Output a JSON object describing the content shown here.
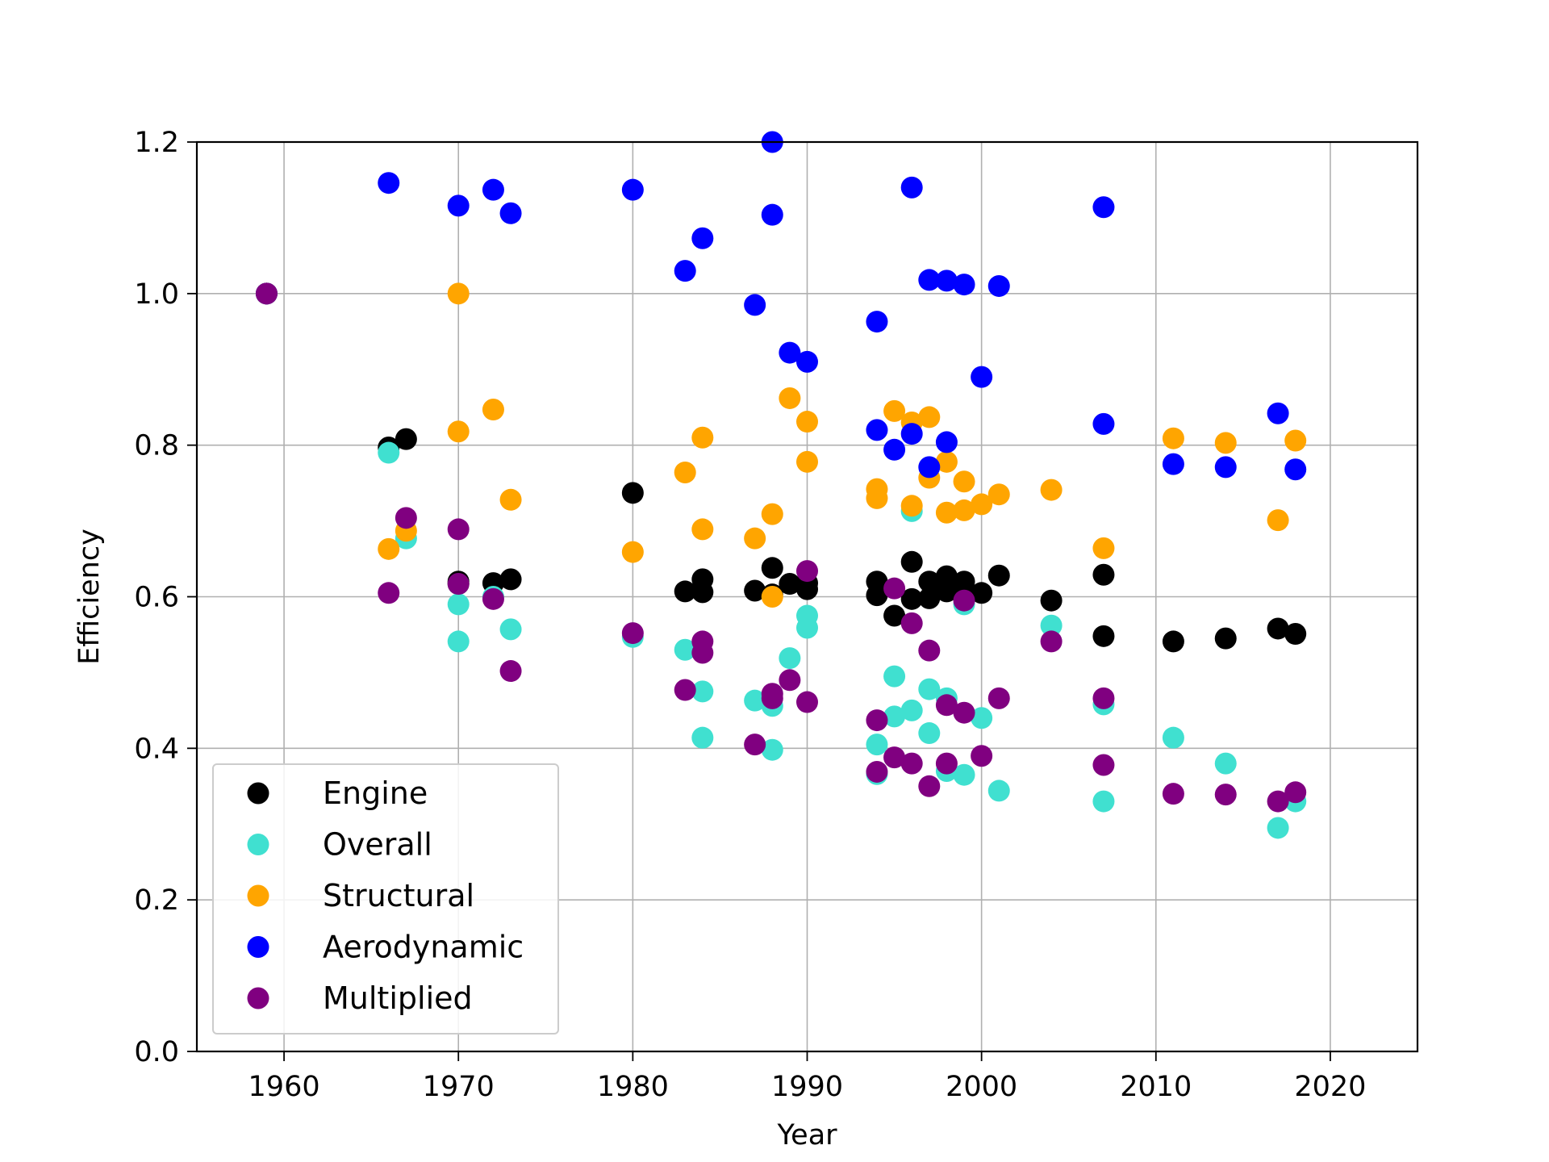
{
  "chart_data": {
    "type": "scatter",
    "title": "",
    "xlabel": "Year",
    "ylabel": "Efficiency",
    "xlim": [
      1955,
      2025
    ],
    "ylim": [
      0,
      1.2
    ],
    "xticks": [
      1960,
      1970,
      1980,
      1990,
      2000,
      2010,
      2020
    ],
    "xtick_labels": [
      "1960",
      "1970",
      "1980",
      "1990",
      "2000",
      "2010",
      "2020"
    ],
    "yticks": [
      0,
      0.2,
      0.4,
      0.6,
      0.8,
      1.0,
      1.2
    ],
    "ytick_labels": [
      "0.0",
      "0.2",
      "0.4",
      "0.6",
      "0.8",
      "1.0",
      "1.2"
    ],
    "grid": true,
    "legend_position": "lower-left",
    "series": [
      {
        "name": "Engine",
        "color": "#000000",
        "points": [
          [
            1959,
            1.0
          ],
          [
            1966,
            0.797
          ],
          [
            1967,
            0.808
          ],
          [
            1970,
            0.62
          ],
          [
            1970,
            0.617
          ],
          [
            1972,
            0.618
          ],
          [
            1973,
            0.623
          ],
          [
            1980,
            0.737
          ],
          [
            1983,
            0.607
          ],
          [
            1984,
            0.623
          ],
          [
            1984,
            0.606
          ],
          [
            1987,
            0.608
          ],
          [
            1988,
            0.638
          ],
          [
            1988,
            0.603
          ],
          [
            1989,
            0.617
          ],
          [
            1990,
            0.61
          ],
          [
            1990,
            0.618
          ],
          [
            1994,
            0.62
          ],
          [
            1994,
            0.602
          ],
          [
            1995,
            0.575
          ],
          [
            1996,
            0.646
          ],
          [
            1996,
            0.597
          ],
          [
            1997,
            0.62
          ],
          [
            1997,
            0.598
          ],
          [
            1998,
            0.627
          ],
          [
            1998,
            0.607
          ],
          [
            1999,
            0.62
          ],
          [
            1999,
            0.61
          ],
          [
            2000,
            0.605
          ],
          [
            2001,
            0.628
          ],
          [
            2004,
            0.595
          ],
          [
            2007,
            0.629
          ],
          [
            2007,
            0.548
          ],
          [
            2011,
            0.541
          ],
          [
            2014,
            0.545
          ],
          [
            2017,
            0.558
          ],
          [
            2018,
            0.551
          ]
        ]
      },
      {
        "name": "Overall",
        "color": "#40e0d0",
        "points": [
          [
            1959,
            1.0
          ],
          [
            1966,
            0.79
          ],
          [
            1967,
            0.677
          ],
          [
            1970,
            0.59
          ],
          [
            1970,
            0.541
          ],
          [
            1972,
            0.6
          ],
          [
            1973,
            0.557
          ],
          [
            1980,
            0.547
          ],
          [
            1983,
            0.53
          ],
          [
            1984,
            0.475
          ],
          [
            1984,
            0.414
          ],
          [
            1987,
            0.463
          ],
          [
            1988,
            0.456
          ],
          [
            1988,
            0.398
          ],
          [
            1989,
            0.519
          ],
          [
            1990,
            0.575
          ],
          [
            1990,
            0.559
          ],
          [
            1994,
            0.405
          ],
          [
            1994,
            0.366
          ],
          [
            1995,
            0.495
          ],
          [
            1995,
            0.442
          ],
          [
            1996,
            0.713
          ],
          [
            1996,
            0.45
          ],
          [
            1997,
            0.478
          ],
          [
            1997,
            0.42
          ],
          [
            1998,
            0.466
          ],
          [
            1998,
            0.37
          ],
          [
            1999,
            0.59
          ],
          [
            1999,
            0.365
          ],
          [
            2000,
            0.44
          ],
          [
            2001,
            0.344
          ],
          [
            2004,
            0.562
          ],
          [
            2007,
            0.458
          ],
          [
            2007,
            0.33
          ],
          [
            2011,
            0.414
          ],
          [
            2014,
            0.38
          ],
          [
            2017,
            0.295
          ],
          [
            2018,
            0.33
          ]
        ]
      },
      {
        "name": "Structural",
        "color": "#ffa500",
        "points": [
          [
            1959,
            1.0
          ],
          [
            1966,
            0.663
          ],
          [
            1967,
            0.687
          ],
          [
            1970,
            1.0
          ],
          [
            1970,
            0.818
          ],
          [
            1972,
            0.847
          ],
          [
            1973,
            0.728
          ],
          [
            1980,
            0.659
          ],
          [
            1983,
            0.764
          ],
          [
            1984,
            0.81
          ],
          [
            1984,
            0.689
          ],
          [
            1987,
            0.677
          ],
          [
            1988,
            0.709
          ],
          [
            1988,
            0.6
          ],
          [
            1989,
            0.862
          ],
          [
            1990,
            0.831
          ],
          [
            1990,
            0.778
          ],
          [
            1994,
            0.742
          ],
          [
            1994,
            0.73
          ],
          [
            1995,
            0.845
          ],
          [
            1996,
            0.83
          ],
          [
            1996,
            0.72
          ],
          [
            1997,
            0.837
          ],
          [
            1997,
            0.757
          ],
          [
            1998,
            0.778
          ],
          [
            1998,
            0.711
          ],
          [
            1999,
            0.752
          ],
          [
            1999,
            0.714
          ],
          [
            2000,
            0.722
          ],
          [
            2001,
            0.735
          ],
          [
            2004,
            0.741
          ],
          [
            2007,
            0.664
          ],
          [
            2011,
            0.809
          ],
          [
            2014,
            0.803
          ],
          [
            2017,
            0.701
          ],
          [
            2018,
            0.806
          ]
        ]
      },
      {
        "name": "Aerodynamic",
        "color": "#0000ff",
        "points": [
          [
            1959,
            1.0
          ],
          [
            1966,
            1.146
          ],
          [
            1970,
            1.116
          ],
          [
            1972,
            1.137
          ],
          [
            1973,
            1.106
          ],
          [
            1980,
            1.137
          ],
          [
            1983,
            1.03
          ],
          [
            1984,
            1.073
          ],
          [
            1987,
            0.985
          ],
          [
            1988,
            1.2
          ],
          [
            1988,
            1.104
          ],
          [
            1989,
            0.922
          ],
          [
            1990,
            0.91
          ],
          [
            1994,
            0.963
          ],
          [
            1994,
            0.82
          ],
          [
            1995,
            0.794
          ],
          [
            1996,
            1.14
          ],
          [
            1996,
            0.815
          ],
          [
            1997,
            1.018
          ],
          [
            1997,
            0.771
          ],
          [
            1998,
            1.017
          ],
          [
            1998,
            0.804
          ],
          [
            1999,
            1.012
          ],
          [
            2000,
            0.89
          ],
          [
            2001,
            1.01
          ],
          [
            2007,
            1.114
          ],
          [
            2007,
            0.828
          ],
          [
            2011,
            0.775
          ],
          [
            2014,
            0.771
          ],
          [
            2017,
            0.842
          ],
          [
            2018,
            0.768
          ]
        ]
      },
      {
        "name": "Multiplied",
        "color": "#800080",
        "points": [
          [
            1959,
            1.0
          ],
          [
            1966,
            0.605
          ],
          [
            1967,
            0.704
          ],
          [
            1970,
            0.689
          ],
          [
            1970,
            0.617
          ],
          [
            1972,
            0.597
          ],
          [
            1973,
            0.502
          ],
          [
            1980,
            0.552
          ],
          [
            1983,
            0.477
          ],
          [
            1984,
            0.541
          ],
          [
            1984,
            0.526
          ],
          [
            1987,
            0.405
          ],
          [
            1988,
            0.472
          ],
          [
            1988,
            0.466
          ],
          [
            1989,
            0.49
          ],
          [
            1990,
            0.634
          ],
          [
            1990,
            0.461
          ],
          [
            1994,
            0.437
          ],
          [
            1994,
            0.369
          ],
          [
            1995,
            0.611
          ],
          [
            1995,
            0.388
          ],
          [
            1996,
            0.565
          ],
          [
            1996,
            0.38
          ],
          [
            1997,
            0.529
          ],
          [
            1997,
            0.35
          ],
          [
            1998,
            0.457
          ],
          [
            1998,
            0.38
          ],
          [
            1999,
            0.595
          ],
          [
            1999,
            0.447
          ],
          [
            2000,
            0.39
          ],
          [
            2001,
            0.466
          ],
          [
            2004,
            0.541
          ],
          [
            2007,
            0.466
          ],
          [
            2007,
            0.378
          ],
          [
            2011,
            0.34
          ],
          [
            2014,
            0.339
          ],
          [
            2017,
            0.33
          ],
          [
            2018,
            0.342
          ]
        ]
      }
    ]
  }
}
